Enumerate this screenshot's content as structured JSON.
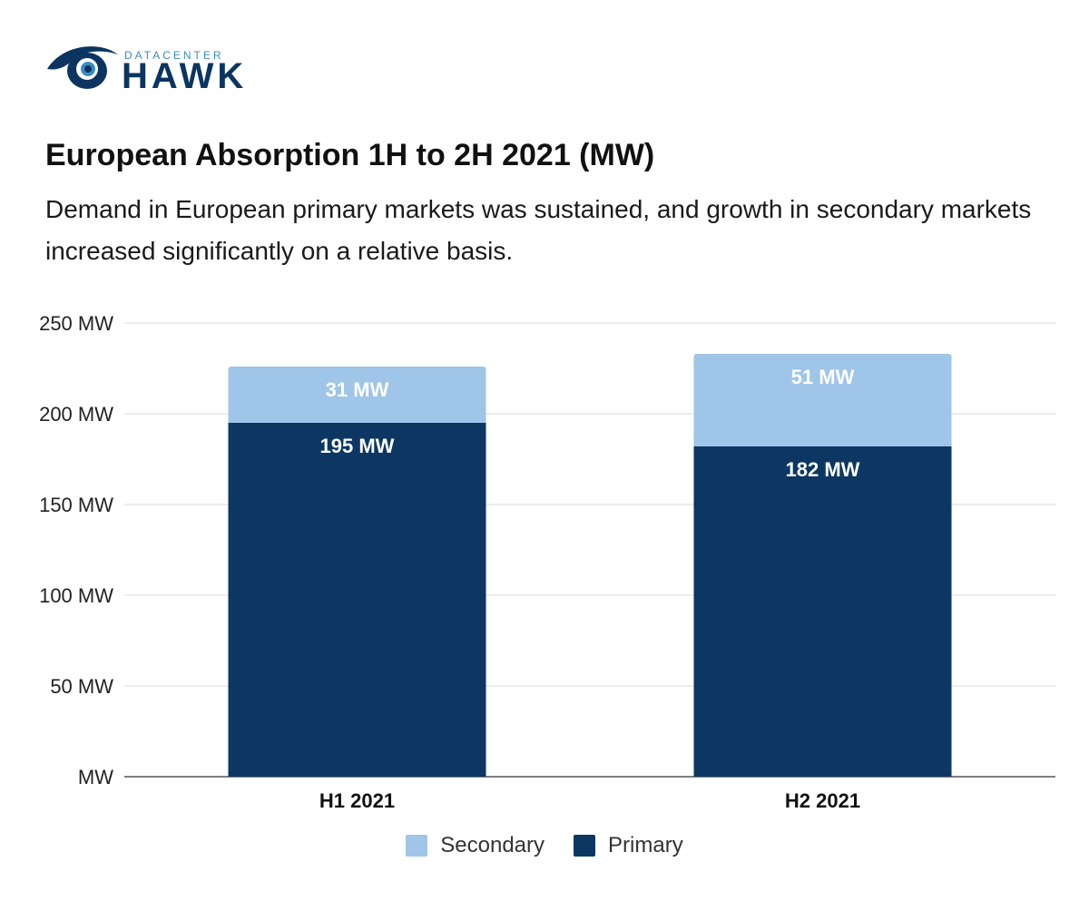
{
  "brand": {
    "small": "DATACENTER",
    "name": "HAWK",
    "colors": {
      "dark": "#0b3560",
      "light": "#3a8cc0"
    }
  },
  "chart_data": {
    "type": "bar",
    "stacked": true,
    "title": "European Absorption 1H to 2H 2021 (MW)",
    "subtitle": "Demand in European primary markets was sustained, and growth in secondary markets increased significantly on a relative basis.",
    "categories": [
      "H1 2021",
      "H2 2021"
    ],
    "series": [
      {
        "name": "Primary",
        "values": [
          195,
          182
        ],
        "labels": [
          "195 MW",
          "182 MW"
        ],
        "color": "#0b3762"
      },
      {
        "name": "Secondary",
        "values": [
          31,
          51
        ],
        "labels": [
          "31 MW",
          "51 MW"
        ],
        "color": "#9fc5e8"
      }
    ],
    "ylim": [
      0,
      250
    ],
    "yticks": [
      0,
      50,
      100,
      150,
      200,
      250
    ],
    "ytick_labels": [
      "MW",
      "50 MW",
      "100 MW",
      "150 MW",
      "200 MW",
      "250 MW"
    ],
    "grid": true,
    "legend_position": "bottom",
    "legend_order": [
      "Secondary",
      "Primary"
    ]
  }
}
